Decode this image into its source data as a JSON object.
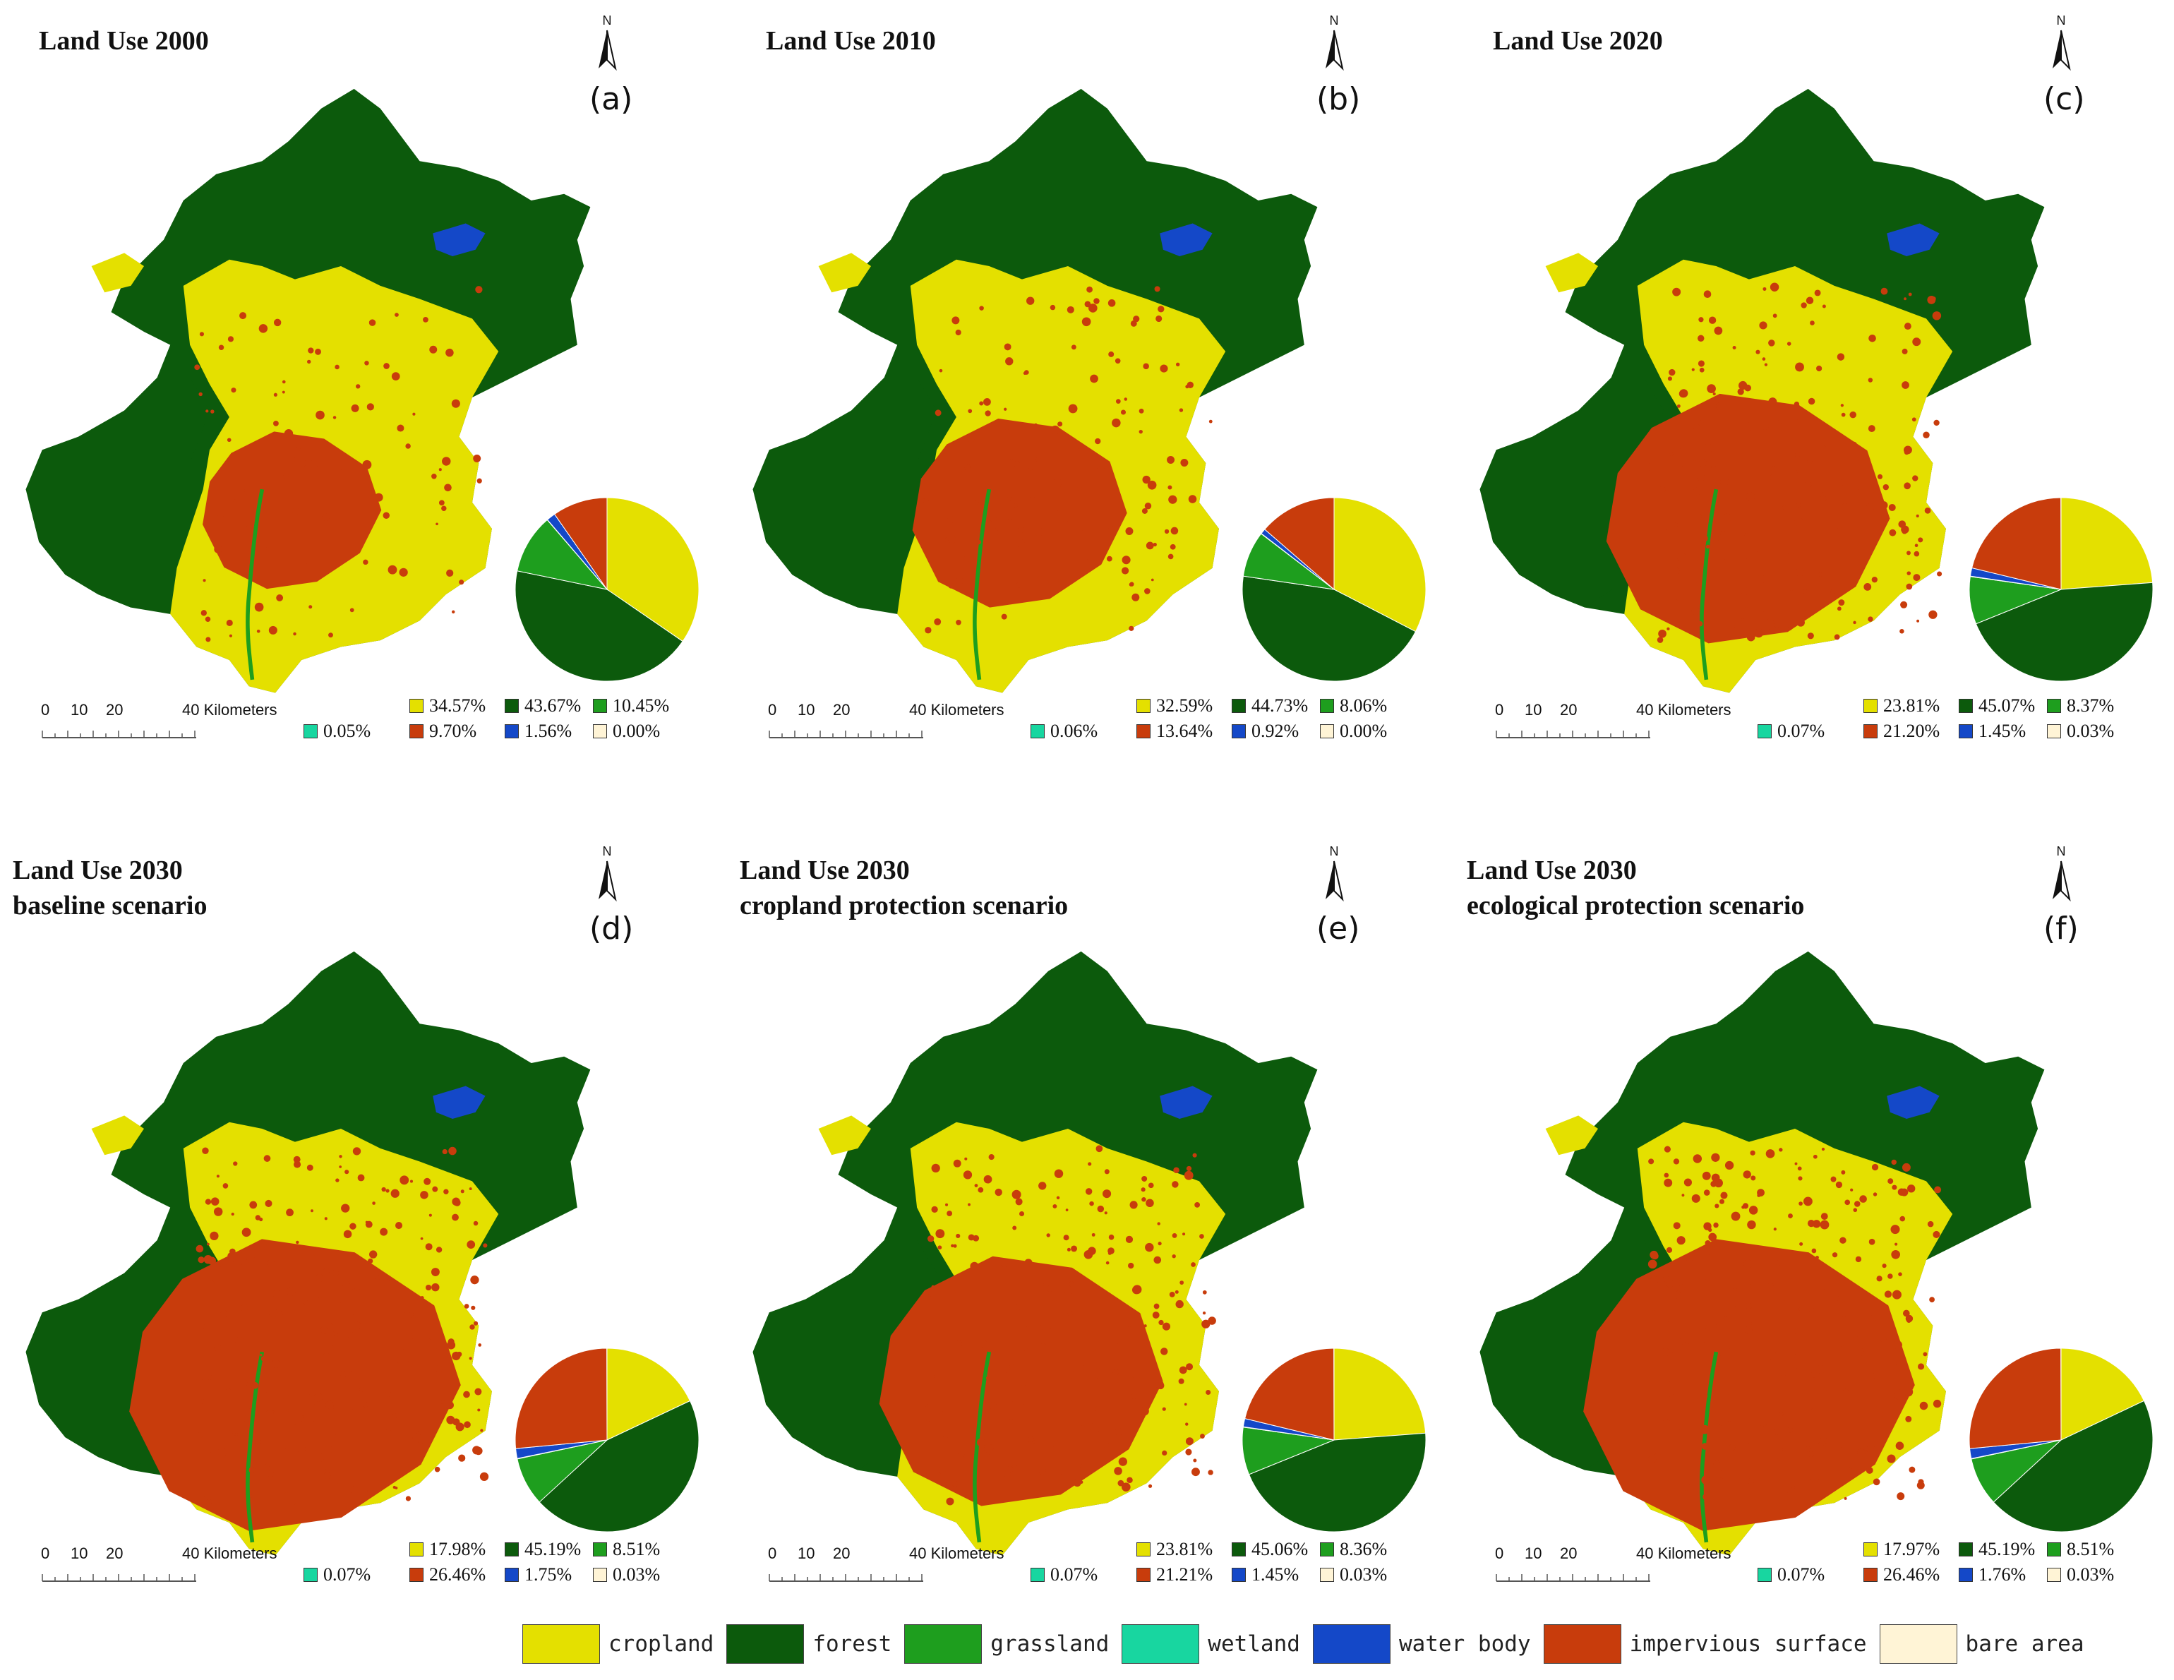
{
  "colors": {
    "cropland": "#e4e000",
    "forest": "#0c5a0c",
    "grassland": "#1e9e1e",
    "wetland": "#18d6a0",
    "water_body": "#1448c8",
    "impervious_surface": "#c83c0c",
    "bare_area": "#fff4d6"
  },
  "north_label": "N",
  "scale_bar": {
    "t0": "0",
    "t10": "10",
    "t20": "20",
    "t40": "40 Kilometers"
  },
  "panels": [
    {
      "title": [
        "Land Use 2000"
      ],
      "letter": "(a)",
      "percents": {
        "cropland": "34.57%",
        "forest": "43.67%",
        "grassland": "10.45%",
        "wetland": "0.05%",
        "impervious_surface": "9.70%",
        "water_body": "1.56%",
        "bare_area": "0.00%"
      },
      "values": {
        "cropland": 34.57,
        "forest": 43.67,
        "grassland": 10.45,
        "wetland": 0.05,
        "water_body": 1.56,
        "impervious_surface": 9.7,
        "bare_area": 0.0
      }
    },
    {
      "title": [
        "Land Use 2010"
      ],
      "letter": "(b)",
      "percents": {
        "cropland": "32.59%",
        "forest": "44.73%",
        "grassland": "8.06%",
        "wetland": "0.06%",
        "impervious_surface": "13.64%",
        "water_body": "0.92%",
        "bare_area": "0.00%"
      },
      "values": {
        "cropland": 32.59,
        "forest": 44.73,
        "grassland": 8.06,
        "wetland": 0.06,
        "water_body": 0.92,
        "impervious_surface": 13.64,
        "bare_area": 0.0
      }
    },
    {
      "title": [
        "Land Use 2020"
      ],
      "letter": "(c)",
      "percents": {
        "cropland": "23.81%",
        "forest": "45.07%",
        "grassland": "8.37%",
        "wetland": "0.07%",
        "impervious_surface": "21.20%",
        "water_body": "1.45%",
        "bare_area": "0.03%"
      },
      "values": {
        "cropland": 23.81,
        "forest": 45.07,
        "grassland": 8.37,
        "wetland": 0.07,
        "water_body": 1.45,
        "impervious_surface": 21.2,
        "bare_area": 0.03
      }
    },
    {
      "title": [
        "Land Use 2030",
        "baseline scenario"
      ],
      "letter": "(d)",
      "percents": {
        "cropland": "17.98%",
        "forest": "45.19%",
        "grassland": "8.51%",
        "wetland": "0.07%",
        "impervious_surface": "26.46%",
        "water_body": "1.75%",
        "bare_area": "0.03%"
      },
      "values": {
        "cropland": 17.98,
        "forest": 45.19,
        "grassland": 8.51,
        "wetland": 0.07,
        "water_body": 1.75,
        "impervious_surface": 26.46,
        "bare_area": 0.03
      }
    },
    {
      "title": [
        "Land Use 2030",
        "cropland protection scenario"
      ],
      "letter": "(e)",
      "percents": {
        "cropland": "23.81%",
        "forest": "45.06%",
        "grassland": "8.36%",
        "wetland": "0.07%",
        "impervious_surface": "21.21%",
        "water_body": "1.45%",
        "bare_area": "0.03%"
      },
      "values": {
        "cropland": 23.81,
        "forest": 45.06,
        "grassland": 8.36,
        "wetland": 0.07,
        "water_body": 1.45,
        "impervious_surface": 21.21,
        "bare_area": 0.03
      }
    },
    {
      "title": [
        "Land Use 2030",
        "ecological protection scenario"
      ],
      "letter": "(f)",
      "percents": {
        "cropland": "17.97%",
        "forest": "45.19%",
        "grassland": "8.51%",
        "wetland": "0.07%",
        "impervious_surface": "26.46%",
        "water_body": "1.76%",
        "bare_area": "0.03%"
      },
      "values": {
        "cropland": 17.97,
        "forest": 45.19,
        "grassland": 8.51,
        "wetland": 0.07,
        "water_body": 1.76,
        "impervious_surface": 26.46,
        "bare_area": 0.03
      }
    }
  ],
  "legend": [
    {
      "key": "cropland",
      "label": "cropland"
    },
    {
      "key": "forest",
      "label": "forest"
    },
    {
      "key": "grassland",
      "label": "grassland"
    },
    {
      "key": "wetland",
      "label": "wetland"
    },
    {
      "key": "water_body",
      "label": "water body"
    },
    {
      "key": "impervious_surface",
      "label": "impervious surface"
    },
    {
      "key": "bare_area",
      "label": "bare area"
    }
  ]
}
